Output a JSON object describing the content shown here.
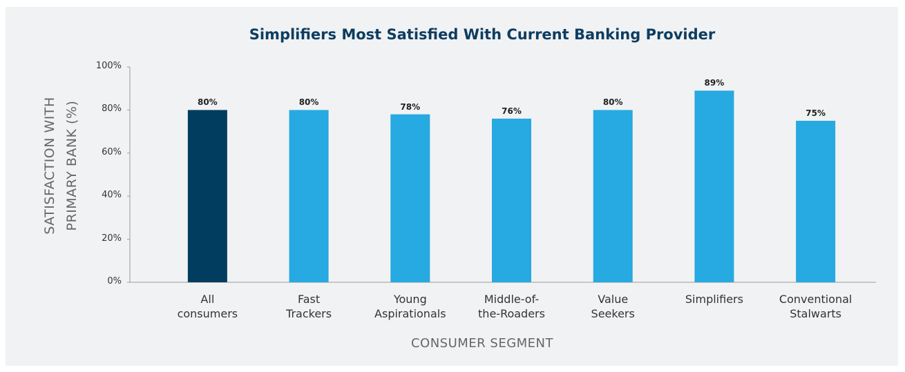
{
  "chart_data": {
    "type": "bar",
    "title": "Simplifiers Most Satisfied With Current Banking Provider",
    "x_label": "CONSUMER SEGMENT",
    "y_label": "SATISFACTION WITH\nPRIMARY BANK (%)",
    "categories": [
      "All\nconsumers",
      "Fast\nTrackers",
      "Young\nAspirationals",
      "Middle-of-\nthe-Roaders",
      "Value\nSeekers",
      "Simplifiers",
      "Conventional\nStalwarts"
    ],
    "values": [
      80,
      80,
      78,
      76,
      80,
      89,
      75
    ],
    "value_labels": [
      "80%",
      "80%",
      "78%",
      "76%",
      "80%",
      "89%",
      "75%"
    ],
    "colors": [
      "#003d5e",
      "#27a9e1",
      "#27a9e1",
      "#27a9e1",
      "#27a9e1",
      "#27a9e1",
      "#27a9e1"
    ],
    "ylim": [
      0,
      100
    ],
    "yticks": [
      {
        "value": 0,
        "label": "0%"
      },
      {
        "value": 20,
        "label": "20%"
      },
      {
        "value": 40,
        "label": "40%"
      },
      {
        "value": 60,
        "label": "60%"
      },
      {
        "value": 80,
        "label": "80%"
      },
      {
        "value": 100,
        "label": "100%"
      }
    ],
    "grid": false
  }
}
